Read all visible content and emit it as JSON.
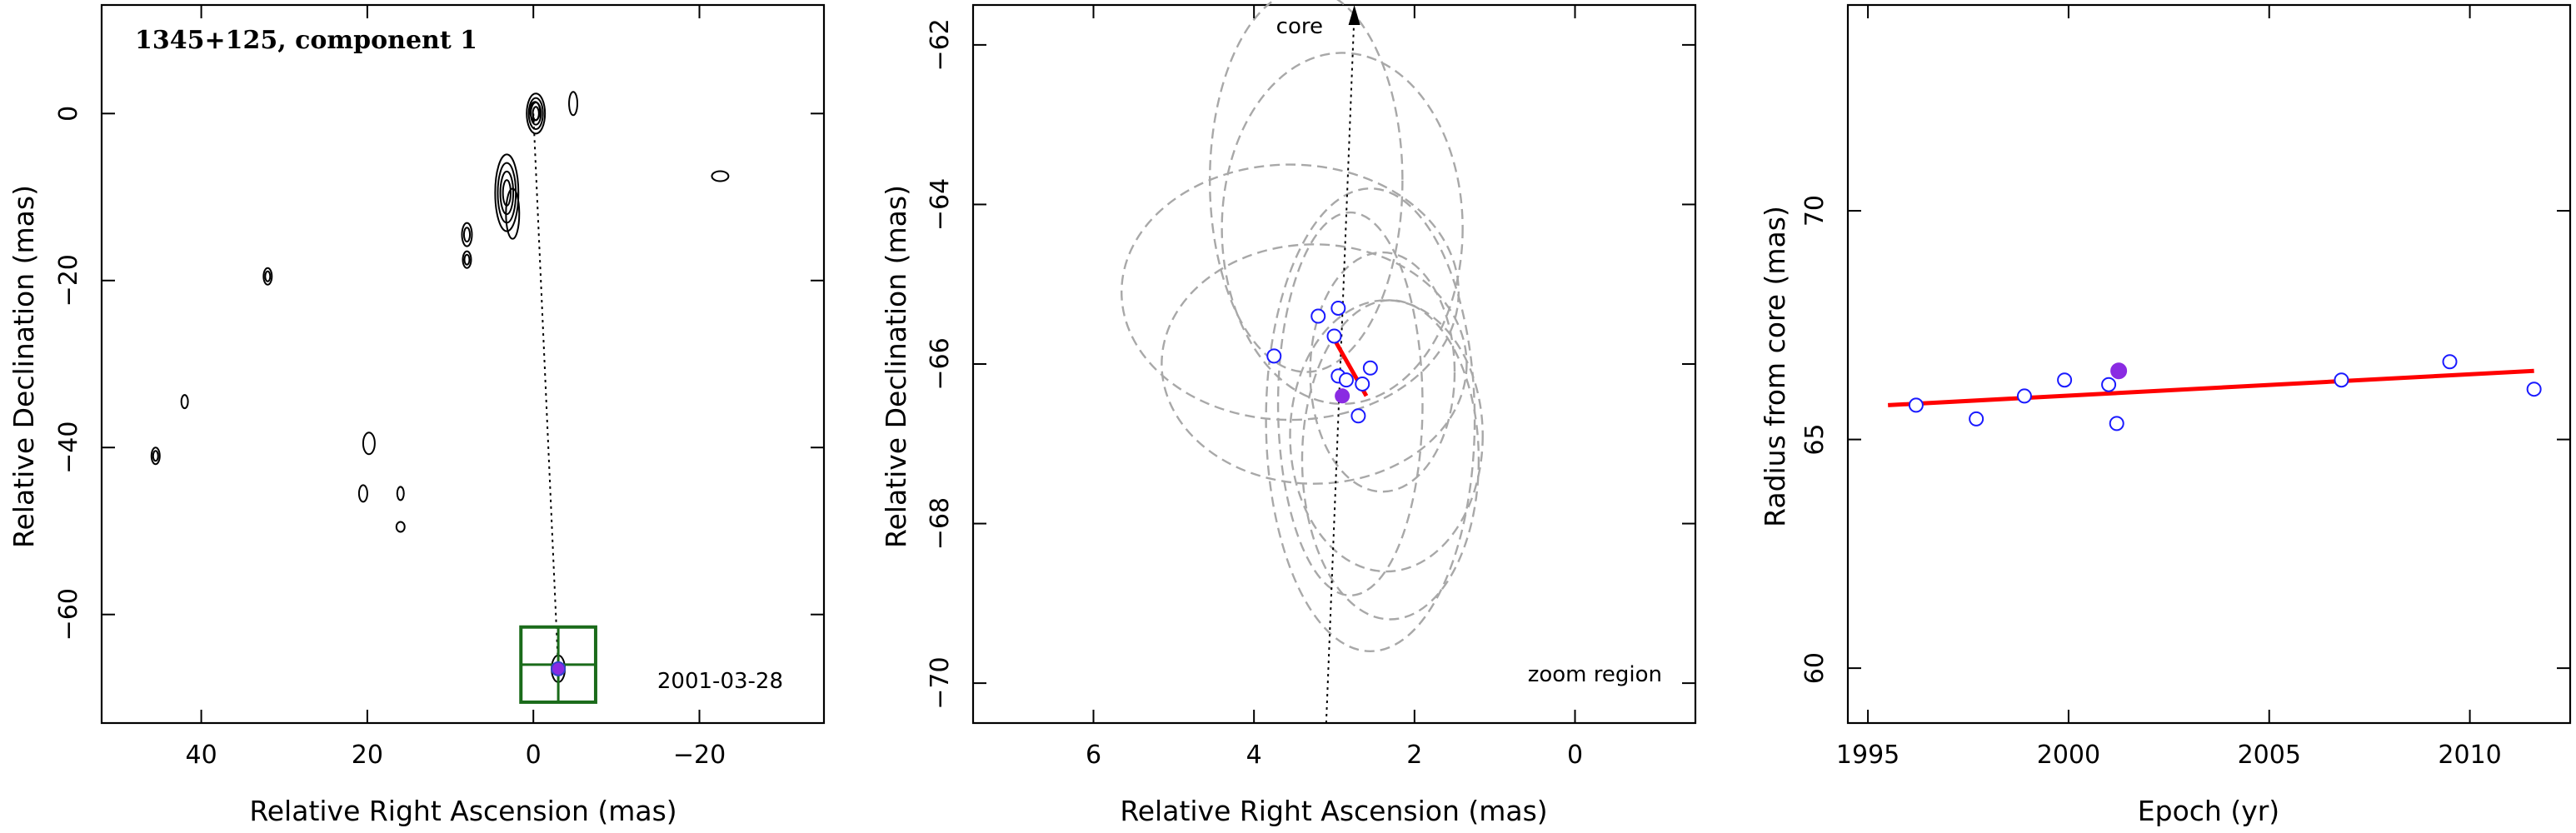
{
  "chart_data": [
    {
      "type": "scatter",
      "panel": "contour-map",
      "title": "1345+125, component 1",
      "date": "2001-03-28",
      "xlabel": "Relative Right Ascension (mas)",
      "ylabel": "Relative Declination (mas)",
      "xlim": [
        52,
        -35
      ],
      "ylim": [
        -73,
        13
      ],
      "xticks": [
        40,
        20,
        0,
        -20
      ],
      "yticks": [
        0,
        -20,
        -40,
        -60
      ],
      "core_path": {
        "from": [
          0,
          0
        ],
        "to": [
          -3,
          -66.5
        ]
      },
      "component": {
        "x": -3,
        "y": -66.5,
        "color": "#8a2be2"
      },
      "zoom_box": {
        "ra_range": [
          1.5,
          -7.5
        ],
        "dec_range": [
          -61.5,
          -70.5
        ],
        "color": "#1a6b1a"
      },
      "contours": [
        {
          "x": -0.3,
          "y": 0.0,
          "a": 1.1,
          "b": 2.4,
          "rings": 4
        },
        {
          "x": -0.2,
          "y": 0.3,
          "a": 0.6,
          "b": 1.1,
          "rings": 1
        },
        {
          "x": -4.8,
          "y": 1.2,
          "a": 0.5,
          "b": 1.4,
          "rings": 1
        },
        {
          "x": 3.2,
          "y": -9.5,
          "a": 1.4,
          "b": 4.6,
          "rings": 4
        },
        {
          "x": 2.5,
          "y": -12.0,
          "a": 0.8,
          "b": 3.0,
          "rings": 1
        },
        {
          "x": 8.0,
          "y": -14.5,
          "a": 0.6,
          "b": 1.4,
          "rings": 2
        },
        {
          "x": 8.0,
          "y": -17.5,
          "a": 0.5,
          "b": 1.0,
          "rings": 2
        },
        {
          "x": 32.0,
          "y": -19.5,
          "a": 0.5,
          "b": 1.0,
          "rings": 2
        },
        {
          "x": 42.0,
          "y": -34.5,
          "a": 0.4,
          "b": 0.8,
          "rings": 1
        },
        {
          "x": 45.5,
          "y": -41.0,
          "a": 0.5,
          "b": 1.0,
          "rings": 2
        },
        {
          "x": 19.8,
          "y": -39.5,
          "a": 0.7,
          "b": 1.3,
          "rings": 1
        },
        {
          "x": 20.5,
          "y": -45.5,
          "a": 0.5,
          "b": 1.0,
          "rings": 1
        },
        {
          "x": 16.0,
          "y": -45.5,
          "a": 0.4,
          "b": 0.8,
          "rings": 1
        },
        {
          "x": 16.0,
          "y": -49.5,
          "a": 0.5,
          "b": 0.6,
          "rings": 1
        },
        {
          "x": -22.5,
          "y": -7.5,
          "a": 1.0,
          "b": 0.6,
          "rings": 1
        },
        {
          "x": -3.0,
          "y": -66.5,
          "a": 0.8,
          "b": 1.6,
          "rings": 1
        }
      ]
    },
    {
      "type": "scatter",
      "panel": "zoom-region",
      "annotation_top": "core",
      "annotation_bottom": "zoom region",
      "xlabel": "Relative Right Ascension (mas)",
      "ylabel": "Relative Declination (mas)",
      "xlim": [
        7.5,
        -1.5
      ],
      "ylim": [
        -70.5,
        -61.5
      ],
      "xticks": [
        6,
        4,
        2,
        0
      ],
      "yticks": [
        -62,
        -64,
        -66,
        -68,
        -70
      ],
      "core_direction": {
        "from": [
          3.1,
          -70.5
        ],
        "to": [
          2.75,
          -61.5
        ]
      },
      "fit_segment": {
        "from": [
          3.05,
          -65.6
        ],
        "to": [
          2.6,
          -66.4
        ],
        "color": "#ff0000"
      },
      "component_positions": [
        {
          "x": 3.2,
          "y": -65.4
        },
        {
          "x": 2.95,
          "y": -65.3
        },
        {
          "x": 3.0,
          "y": -65.65
        },
        {
          "x": 3.75,
          "y": -65.9
        },
        {
          "x": 2.55,
          "y": -66.05
        },
        {
          "x": 2.95,
          "y": -66.15
        },
        {
          "x": 2.85,
          "y": -66.2
        },
        {
          "x": 2.65,
          "y": -66.25
        },
        {
          "x": 2.7,
          "y": -66.65
        }
      ],
      "highlight": {
        "x": 2.9,
        "y": -66.4,
        "color": "#8a2be2"
      },
      "ellipses": [
        {
          "cx": 3.35,
          "cy": -63.7,
          "rx": 1.2,
          "ry": 2.4
        },
        {
          "cx": 2.9,
          "cy": -64.3,
          "rx": 1.5,
          "ry": 2.2
        },
        {
          "cx": 3.55,
          "cy": -65.1,
          "rx": 2.1,
          "ry": 1.6
        },
        {
          "cx": 3.25,
          "cy": -66.0,
          "rx": 1.9,
          "ry": 1.5
        },
        {
          "cx": 2.55,
          "cy": -66.7,
          "rx": 1.3,
          "ry": 2.9
        },
        {
          "cx": 2.3,
          "cy": -67.2,
          "rx": 1.1,
          "ry": 2.0
        },
        {
          "cx": 2.35,
          "cy": -66.9,
          "rx": 1.2,
          "ry": 1.7
        },
        {
          "cx": 2.8,
          "cy": -66.5,
          "rx": 0.9,
          "ry": 2.4
        },
        {
          "cx": 2.4,
          "cy": -66.1,
          "rx": 0.9,
          "ry": 1.5
        }
      ]
    },
    {
      "type": "scatter",
      "panel": "radius-epoch",
      "xlabel": "Epoch (yr)",
      "ylabel": "Radius from core (mas)",
      "xlim": [
        1994.5,
        2012.5
      ],
      "ylim": [
        58.8,
        74.5
      ],
      "xticks": [
        1995,
        2000,
        2005,
        2010
      ],
      "yticks": [
        60,
        65,
        70
      ],
      "series": [
        {
          "marker": "open-circle",
          "color": "#1a1aff",
          "x": [
            1996.2,
            1997.7,
            1998.9,
            1999.9,
            2001.0,
            2001.2,
            2006.8,
            2009.5,
            2011.6
          ],
          "y": [
            65.75,
            65.45,
            65.95,
            66.3,
            66.2,
            65.35,
            66.3,
            66.7,
            66.1
          ]
        },
        {
          "marker": "filled-circle",
          "color": "#8a2be2",
          "x": [
            2001.25
          ],
          "y": [
            66.5
          ]
        }
      ],
      "fit": {
        "x": [
          1995.5,
          2011.6
        ],
        "y": [
          65.75,
          66.5
        ],
        "color": "#ff0000"
      }
    }
  ]
}
